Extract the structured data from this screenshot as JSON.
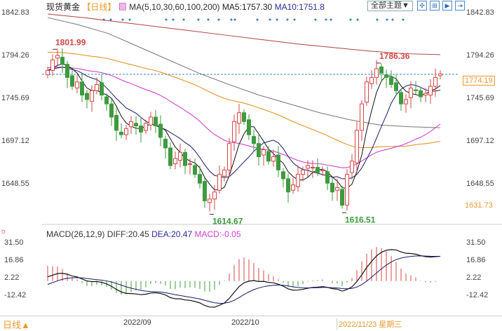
{
  "header": {
    "title": "现货黄金",
    "period": "【日线】",
    "ma_label": "MA(5,10,30,60,100,200)",
    "ma5": "MA5:1757.30",
    "ma10": "MA10:1751.8",
    "theme_button": "全部主题▼"
  },
  "macd_header": {
    "label": "MACD(26,12,9)",
    "diff": "DIFF:20.45",
    "dea": "DEA:20.47",
    "macd": "MACD:-0.05"
  },
  "footer": {
    "period": "日线▲",
    "dates": [
      "2022/09",
      "2022/10"
    ],
    "cursor_date": "2022/11/23 星期三"
  },
  "colors": {
    "up": "#d64545",
    "down": "#3e9a3e",
    "ma5": "#111111",
    "ma10": "#1a1a6a",
    "ma30": "#cc33cc",
    "ma60": "#e08a10",
    "ma100": "#777777",
    "ma200": "#b04040",
    "accent": "#e79a2c"
  },
  "chart_data": {
    "type": "candlestick",
    "price_axis": {
      "ticks": [
        "1842.83",
        "1794.26",
        "1745.69",
        "1697.12",
        "1648.55"
      ],
      "range": [
        1600,
        1842.83
      ]
    },
    "current_price": "1774.19",
    "low_marker": "1631.73",
    "annotations": [
      {
        "text": "1801.99",
        "index": 1,
        "value": 1801.99,
        "kind": "high"
      },
      {
        "text": "1786.36",
        "index": 67,
        "value": 1786.36,
        "kind": "high"
      },
      {
        "text": "1614.67",
        "index": 33,
        "value": 1614.67,
        "kind": "low"
      },
      {
        "text": "1616.51",
        "index": 60,
        "value": 1616.51,
        "kind": "low"
      }
    ],
    "closes": [
      1778,
      1790,
      1795,
      1785,
      1770,
      1760,
      1765,
      1750,
      1745,
      1755,
      1762,
      1750,
      1740,
      1725,
      1710,
      1705,
      1712,
      1720,
      1715,
      1708,
      1718,
      1725,
      1715,
      1702,
      1690,
      1670,
      1678,
      1685,
      1670,
      1672,
      1660,
      1650,
      1630,
      1632,
      1640,
      1660,
      1665,
      1695,
      1720,
      1730,
      1720,
      1705,
      1695,
      1680,
      1688,
      1675,
      1680,
      1665,
      1655,
      1640,
      1648,
      1660,
      1665,
      1670,
      1668,
      1662,
      1665,
      1650,
      1640,
      1645,
      1625,
      1660,
      1675,
      1710,
      1740,
      1765,
      1770,
      1780,
      1775,
      1770,
      1762,
      1755,
      1740,
      1745,
      1758,
      1755,
      1748,
      1752,
      1760,
      1770,
      1774
    ],
    "ma100": [
      1838,
      1830,
      1820,
      1805,
      1790,
      1775,
      1762,
      1750,
      1740,
      1730,
      1722,
      1716,
      1714,
      1713
    ],
    "ma200": [
      1842,
      1838,
      1833,
      1828,
      1823,
      1818,
      1813,
      1808,
      1804,
      1800,
      1797,
      1796
    ],
    "macd_axis": {
      "ticks": [
        "31.50",
        "16.86",
        "2.22",
        "-12.42"
      ]
    }
  }
}
